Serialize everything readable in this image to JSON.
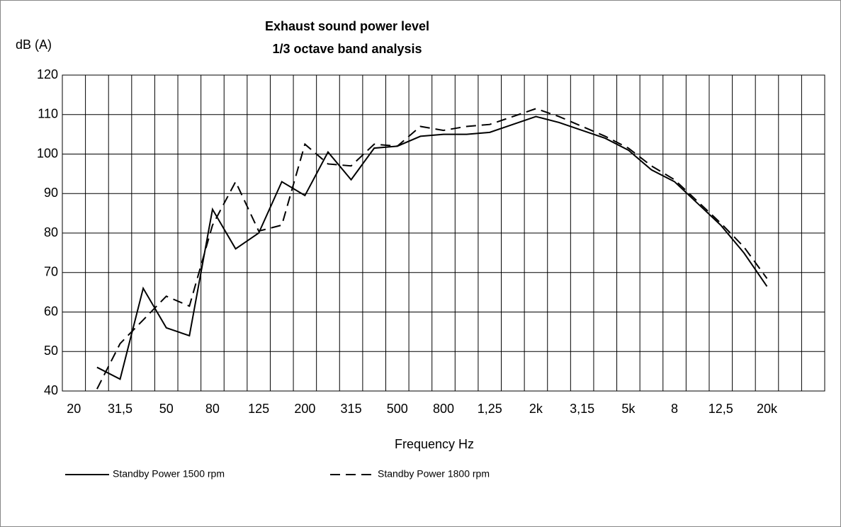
{
  "chart_data": {
    "type": "line",
    "title": "Exhaust sound power level",
    "subtitle": "1/3 octave band analysis",
    "y_label": "dB (A)",
    "x_label": "Frequency Hz",
    "categories": [
      "20",
      null,
      "31,5",
      null,
      "50",
      null,
      "80",
      null,
      "125",
      null,
      "200",
      null,
      "315",
      null,
      "500",
      null,
      "800",
      null,
      "1,25",
      null,
      "2k",
      null,
      "3,15",
      null,
      "5k",
      null,
      "8",
      null,
      "12,5",
      null,
      "20k",
      null,
      null
    ],
    "series": [
      {
        "name": "Standby Power 1500 rpm",
        "color": "#000000",
        "dash": "solid",
        "values": [
          null,
          46,
          43,
          66,
          56,
          54,
          86,
          76,
          80,
          93,
          89.5,
          100.5,
          93.5,
          101.5,
          102,
          104.5,
          105,
          105,
          105.5,
          107.5,
          109.5,
          108,
          106,
          104,
          101,
          96,
          93,
          87.5,
          82,
          75,
          66.5,
          null,
          null
        ]
      },
      {
        "name": "Standby Power 1800 rpm",
        "color": "#000000",
        "dash": "dashed",
        "values": [
          null,
          40.5,
          52,
          58,
          64,
          61.5,
          82,
          93,
          80.5,
          82,
          102.5,
          97.5,
          97,
          102.5,
          102,
          107,
          106,
          107,
          107.5,
          109.5,
          111.5,
          109.5,
          107,
          104.5,
          101.5,
          97,
          93.5,
          88,
          82.5,
          76.5,
          68.5,
          null,
          null
        ]
      }
    ],
    "ylim": [
      40,
      120
    ],
    "yticks": [
      40,
      50,
      60,
      70,
      80,
      90,
      100,
      110,
      120
    ],
    "grid": true,
    "legend": "bottom"
  }
}
